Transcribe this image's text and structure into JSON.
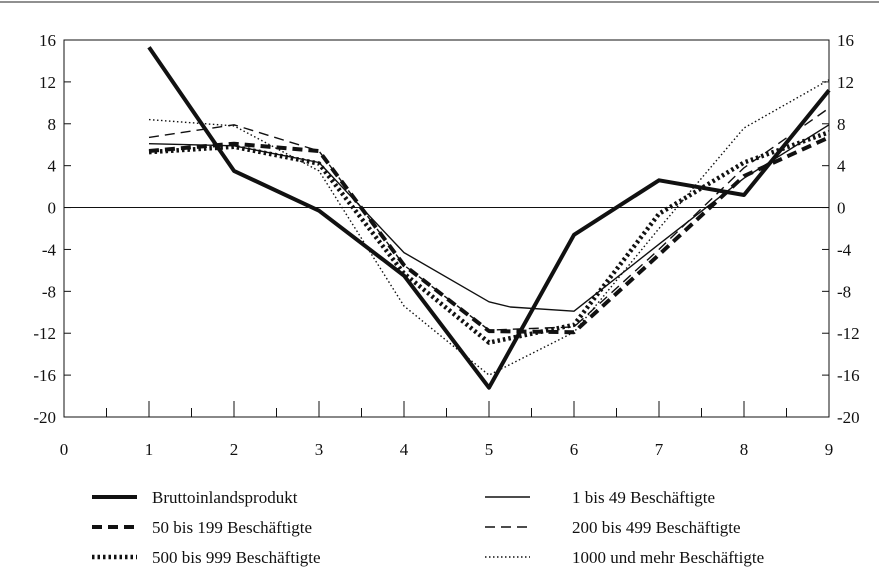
{
  "chart_data": {
    "type": "line",
    "x": [
      1,
      2,
      3,
      4,
      5,
      5.25,
      6,
      7,
      8,
      9
    ],
    "xlim": [
      0,
      9
    ],
    "ylim": [
      -20,
      16
    ],
    "x_ticks": [
      0,
      1,
      2,
      3,
      4,
      5,
      6,
      7,
      8,
      9
    ],
    "y_ticks": [
      16,
      12,
      8,
      4,
      0,
      -4,
      -8,
      -12,
      -16,
      -20
    ],
    "dual_y_axis": true,
    "grid": false,
    "zero_line": true,
    "legend_position": "bottom",
    "series": [
      {
        "name": "Bruttoinlandsprodukt",
        "style": "solid-thick",
        "color": "#111111",
        "points": [
          [
            1,
            15.3
          ],
          [
            2,
            3.5
          ],
          [
            3,
            -0.3
          ],
          [
            4,
            -6.5
          ],
          [
            5,
            -17.2
          ],
          [
            6,
            -2.6
          ],
          [
            7,
            2.6
          ],
          [
            8,
            1.2
          ],
          [
            9,
            11.2
          ]
        ]
      },
      {
        "name": "1 bis 49 Beschäftigte",
        "style": "solid-thin",
        "color": "#111111",
        "points": [
          [
            1,
            6.1
          ],
          [
            2,
            5.9
          ],
          [
            3,
            4.3
          ],
          [
            4,
            -4.3
          ],
          [
            5,
            -9.0
          ],
          [
            5.25,
            -9.5
          ],
          [
            6,
            -9.9
          ],
          [
            7,
            -3.5
          ],
          [
            8,
            2.8
          ],
          [
            9,
            7.9
          ]
        ]
      },
      {
        "name": "50 bis 199 Beschäftigte",
        "style": "dashed-thick",
        "color": "#111111",
        "points": [
          [
            1,
            5.4
          ],
          [
            2,
            6.1
          ],
          [
            3,
            5.4
          ],
          [
            4,
            -5.5
          ],
          [
            5,
            -11.8
          ],
          [
            6,
            -11.9
          ],
          [
            7,
            -4.5
          ],
          [
            8,
            3.0
          ],
          [
            9,
            6.7
          ]
        ]
      },
      {
        "name": "200 bis 499 Beschäftigte",
        "style": "dashed-thin",
        "color": "#111111",
        "points": [
          [
            1,
            6.7
          ],
          [
            2,
            7.9
          ],
          [
            3,
            5.4
          ],
          [
            4,
            -5.5
          ],
          [
            5,
            -11.7
          ],
          [
            6,
            -11.4
          ],
          [
            7,
            -4.0
          ],
          [
            8,
            3.8
          ],
          [
            9,
            9.5
          ]
        ]
      },
      {
        "name": "500 bis 999 Beschäftigte",
        "style": "dotted-thick",
        "color": "#111111",
        "points": [
          [
            1,
            5.3
          ],
          [
            2,
            5.8
          ],
          [
            3,
            4.2
          ],
          [
            4,
            -6.3
          ],
          [
            5,
            -12.9
          ],
          [
            6,
            -11.2
          ],
          [
            7,
            -0.6
          ],
          [
            8,
            4.3
          ],
          [
            9,
            7.2
          ]
        ]
      },
      {
        "name": "1000 und mehr Beschäftigte",
        "style": "dotted-thin",
        "color": "#111111",
        "points": [
          [
            1,
            8.4
          ],
          [
            2,
            7.8
          ],
          [
            3,
            3.5
          ],
          [
            4,
            -9.4
          ],
          [
            5,
            -16.0
          ],
          [
            6,
            -11.9
          ],
          [
            7,
            -2.0
          ],
          [
            8,
            7.6
          ],
          [
            9,
            12.2
          ]
        ]
      }
    ]
  }
}
